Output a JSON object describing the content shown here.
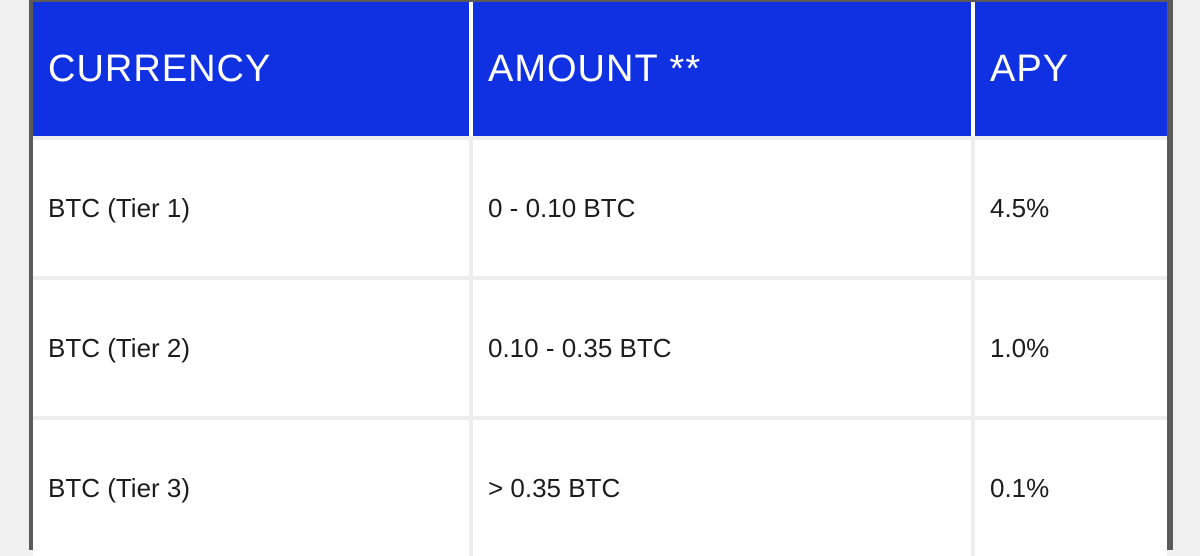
{
  "table": {
    "headers": [
      "CURRENCY",
      "AMOUNT **",
      "APY"
    ],
    "rows": [
      {
        "currency": "BTC (Tier 1)",
        "amount": "0 - 0.10 BTC",
        "apy": "4.5%"
      },
      {
        "currency": "BTC (Tier 2)",
        "amount": "0.10 - 0.35 BTC",
        "apy": "1.0%"
      },
      {
        "currency": "BTC (Tier 3)",
        "amount": "> 0.35 BTC",
        "apy": "0.1%"
      }
    ]
  },
  "colors": {
    "header_bg": "#1031e2",
    "header_text": "#ffffff",
    "cell_bg": "#ffffff",
    "cell_text": "#1c1c1c",
    "frame": "#5a5a5a",
    "page_bg": "#f0f0f0"
  }
}
